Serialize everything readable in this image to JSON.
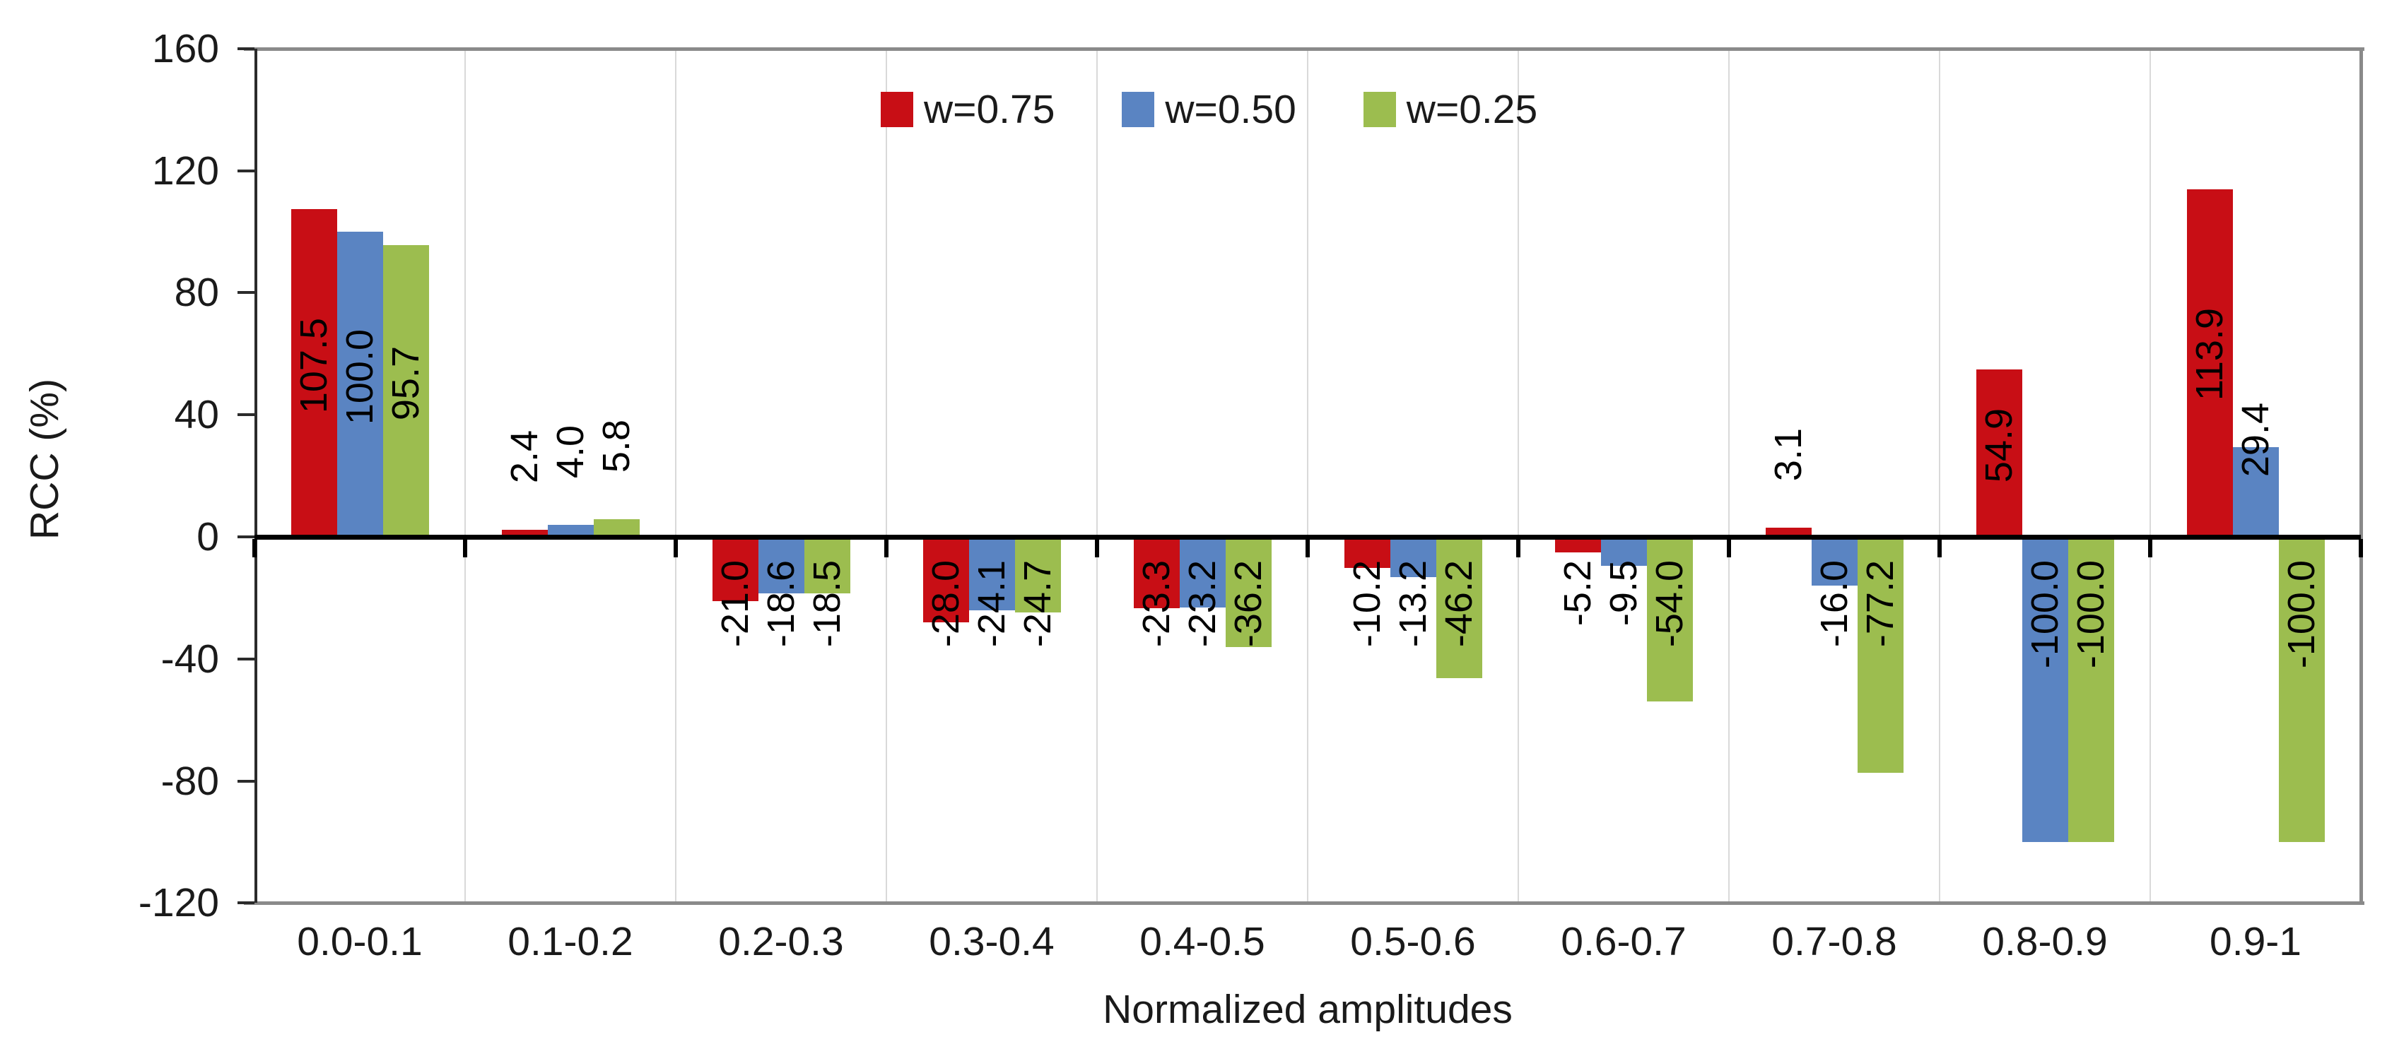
{
  "chart_data": {
    "type": "bar",
    "title": "",
    "xlabel": "Normalized amplitudes",
    "ylabel": "RCC (%)",
    "ylim": [
      -120,
      160
    ],
    "yticks": [
      160,
      120,
      80,
      40,
      0,
      -40,
      -80,
      -120
    ],
    "grid": "vertical-category-boundaries-only",
    "legend_position": "top-center-inside",
    "data_label_rotation": 90,
    "data_label_format": "one-decimal",
    "categories": [
      "0.0-0.1",
      "0.1-0.2",
      "0.2-0.3",
      "0.3-0.4",
      "0.4-0.5",
      "0.5-0.6",
      "0.6-0.7",
      "0.7-0.8",
      "0.8-0.9",
      "0.9-1"
    ],
    "series": [
      {
        "name": "w=0.75",
        "color": "#c80e15",
        "values": [
          107.5,
          2.4,
          -21.0,
          -28.0,
          -23.3,
          -10.2,
          -5.2,
          3.1,
          54.9,
          113.9
        ]
      },
      {
        "name": "w=0.50",
        "color": "#5a84c2",
        "values": [
          100.0,
          4.0,
          -18.6,
          -24.1,
          -23.2,
          -13.2,
          -9.5,
          -16.0,
          -100.0,
          29.4
        ]
      },
      {
        "name": "w=0.25",
        "color": "#9cbd4f",
        "values": [
          95.7,
          5.8,
          -18.5,
          -24.7,
          -36.2,
          -46.2,
          -54.0,
          -77.2,
          -100.0,
          -100.0
        ]
      }
    ],
    "colors": {
      "gridline": "#d9d9d9",
      "plot_border": "#8a8a8a",
      "axis_line": "#2b2b2b",
      "zero_line": "#000000",
      "text": "#1a1a1a"
    }
  }
}
